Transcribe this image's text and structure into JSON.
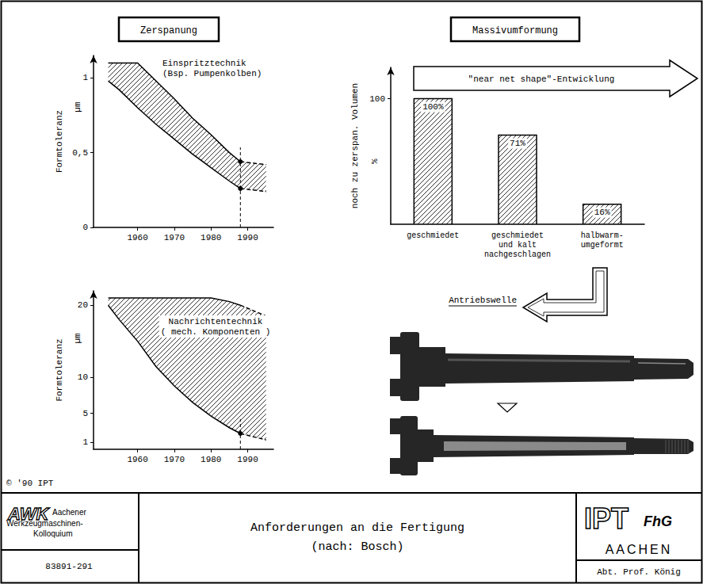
{
  "chart_data": [
    {
      "type": "band",
      "title": "Zerspanung",
      "annotation": "Einspritztechnik\n(Bsp. Pumpenkolben)",
      "ylabel": "Formtoleranz",
      "y_unit": "µm",
      "x": [
        1952,
        1955,
        1960,
        1965,
        1970,
        1975,
        1980,
        1985,
        1988,
        1995
      ],
      "upper": [
        1.1,
        1.1,
        1.1,
        0.98,
        0.86,
        0.73,
        0.62,
        0.5,
        0.44,
        0.42
      ],
      "lower": [
        0.98,
        0.92,
        0.8,
        0.69,
        0.59,
        0.49,
        0.4,
        0.31,
        0.26,
        0.24
      ],
      "xlim": [
        1948,
        1997
      ],
      "xticks": [
        1960,
        1970,
        1980,
        1990
      ],
      "ylim": [
        0,
        1.15
      ],
      "yticks": [
        0,
        {
          "value": 0.5,
          "label": "0,5"
        },
        1
      ],
      "reference_x": 1988,
      "reference_values": [
        0.44,
        0.26
      ],
      "color": "#000000",
      "grid": false
    },
    {
      "type": "bar",
      "title": "Massivumformung",
      "annotation": "\"near net shape\"-Entwicklung",
      "ylabel": "noch zu zerspan. Volumen",
      "y_unit": "%",
      "categories": [
        "geschmiedet",
        "geschmiedet und kalt nachgeschlagen",
        "halbwarm-umgeformt"
      ],
      "values": [
        100,
        71,
        16
      ],
      "value_labels": [
        "100%",
        "71%",
        "16%"
      ],
      "data_labels": true,
      "ylim": [
        0,
        125
      ],
      "yticks": [
        100
      ],
      "color": "#000000",
      "grid": false
    },
    {
      "type": "band",
      "annotation": "Nachrichtentechnik\n( mech. Komponenten )",
      "ylabel": "Formtoleranz",
      "y_unit": "µm",
      "x": [
        1952,
        1955,
        1960,
        1965,
        1970,
        1975,
        1980,
        1985,
        1988,
        1995
      ],
      "upper": [
        21,
        21,
        21,
        21,
        21,
        21,
        21,
        20.5,
        20,
        18.5
      ],
      "lower": [
        20,
        18,
        15,
        11.5,
        8.8,
        6.5,
        4.6,
        3,
        2.2,
        1.3
      ],
      "xlim": [
        1948,
        1997
      ],
      "xticks": [
        1960,
        1970,
        1980,
        1990
      ],
      "ylim": [
        0,
        22
      ],
      "yticks": [
        1,
        5,
        10,
        20
      ],
      "reference_x": 1988,
      "reference_values": [
        2.2
      ],
      "color": "#000000",
      "grid": false
    }
  ],
  "page": {
    "copyright": "© '90 IPT",
    "part_label": "Antriebswelle",
    "footer": {
      "logo_left": "AWK",
      "logo_left_lines": [
        "Aachener",
        "Werkzeugmaschinen-",
        "Kolloquium"
      ],
      "number": "83891-291",
      "title": "Anforderungen an die Fertigung",
      "subtitle": "(nach: Bosch)",
      "logo_right": "IPT",
      "logo_right_sub": "FhG",
      "city": "AACHEN",
      "department": "Abt. Prof. König"
    }
  }
}
